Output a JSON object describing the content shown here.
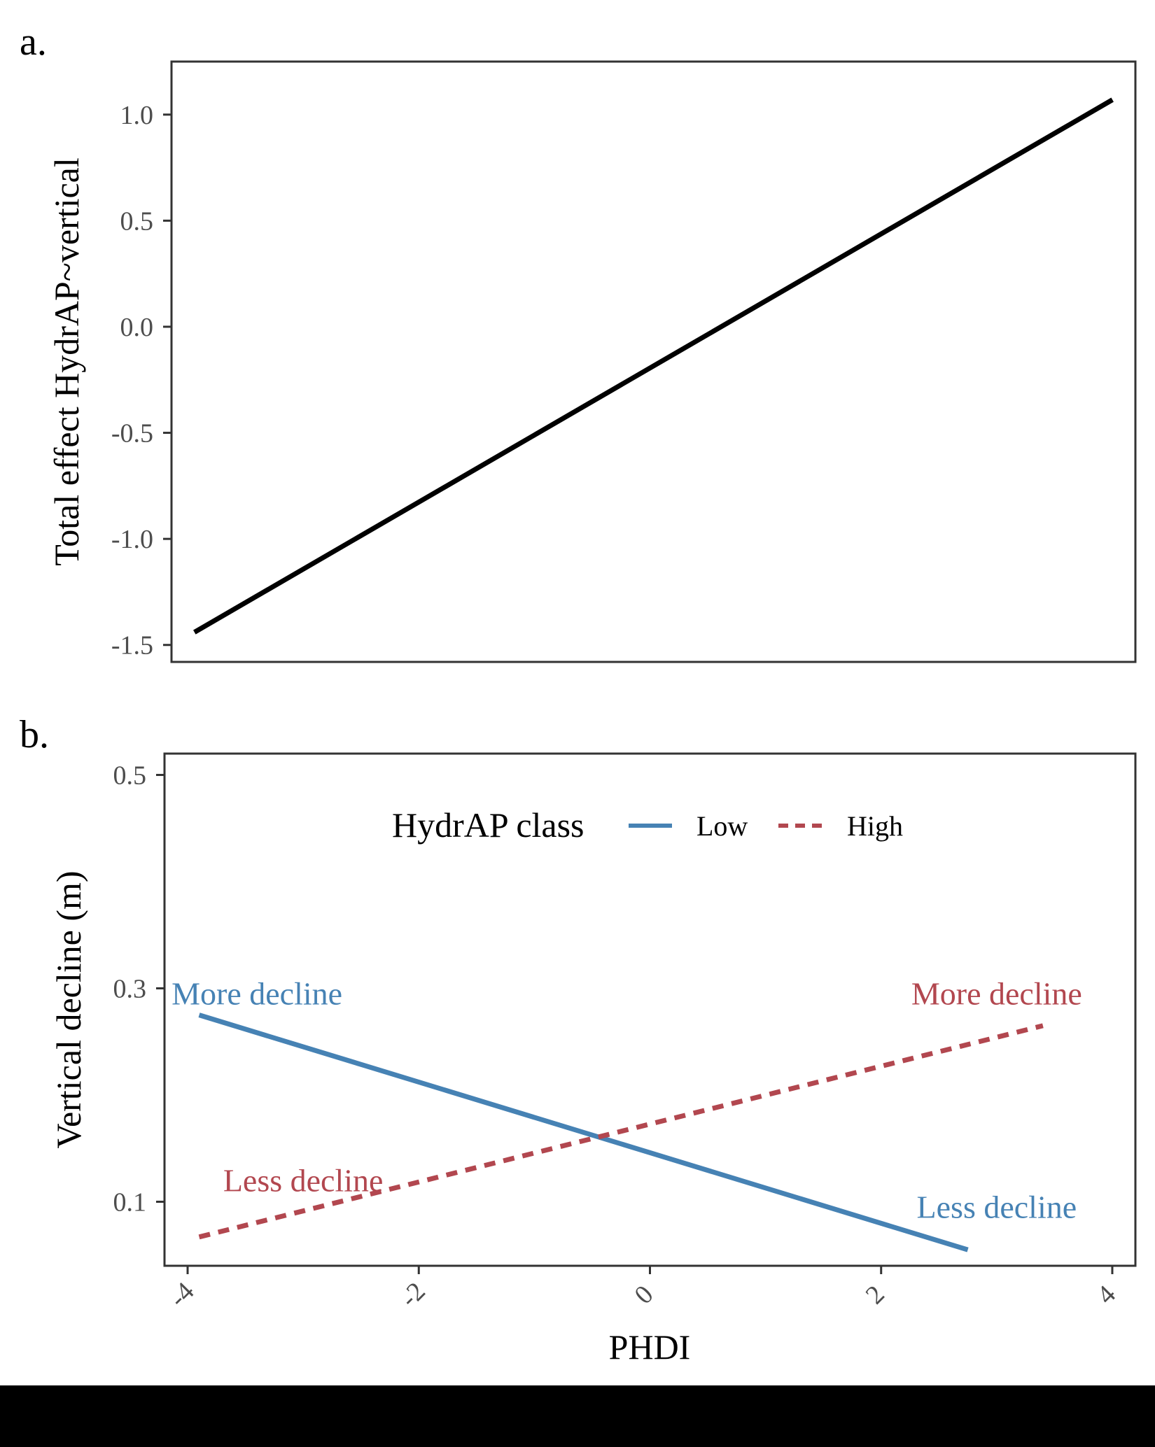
{
  "chart_data": [
    {
      "panel_label": "a.",
      "type": "line",
      "xlim": [
        -4.2,
        4.2
      ],
      "ylim": [
        -1.58,
        1.25
      ],
      "y_ticks": [
        -1.5,
        -1.0,
        -0.5,
        0.0,
        0.5,
        1.0
      ],
      "y_tick_labels": [
        "-1.5",
        "-1.0",
        "-0.5",
        "0.0",
        "0.5",
        "1.0"
      ],
      "xlabel": "",
      "ylabel": "Total effect HydrAP~vertical",
      "grid": false,
      "series": [
        {
          "color": "#000000",
          "dash": "solid",
          "x": [
            -4.0,
            4.0
          ],
          "y": [
            -1.44,
            1.07
          ]
        }
      ]
    },
    {
      "panel_label": "b.",
      "type": "line",
      "xlim": [
        -4.2,
        4.2
      ],
      "ylim": [
        0.04,
        0.52
      ],
      "y_ticks": [
        0.1,
        0.3,
        0.5
      ],
      "y_tick_labels": [
        "0.1",
        "0.3",
        "0.5"
      ],
      "x_ticks": [
        -4,
        -2,
        0,
        2,
        4
      ],
      "x_tick_labels": [
        "-4",
        "-2",
        "0",
        "2",
        "4"
      ],
      "xlabel": "PHDI",
      "ylabel": "Vertical decline (m)",
      "grid": false,
      "legend": {
        "title": "HydrAP class",
        "position": "top"
      },
      "series": [
        {
          "name": "Low",
          "color": "#4682b4",
          "dash": "solid",
          "x": [
            -3.9,
            2.75
          ],
          "y": [
            0.275,
            0.055
          ]
        },
        {
          "name": "High",
          "color": "#b2474f",
          "dash": "dashed",
          "x": [
            -3.9,
            3.4
          ],
          "y": [
            0.067,
            0.265
          ]
        }
      ],
      "annotations": [
        {
          "text": "More decline",
          "color": "#4682b4",
          "x": -3.4,
          "y": 0.285
        },
        {
          "text": "More decline",
          "color": "#b2474f",
          "x": 3.0,
          "y": 0.285
        },
        {
          "text": "Less decline",
          "color": "#b2474f",
          "x": -3.0,
          "y": 0.11
        },
        {
          "text": "Less decline",
          "color": "#4682b4",
          "x": 3.0,
          "y": 0.085
        }
      ]
    }
  ]
}
